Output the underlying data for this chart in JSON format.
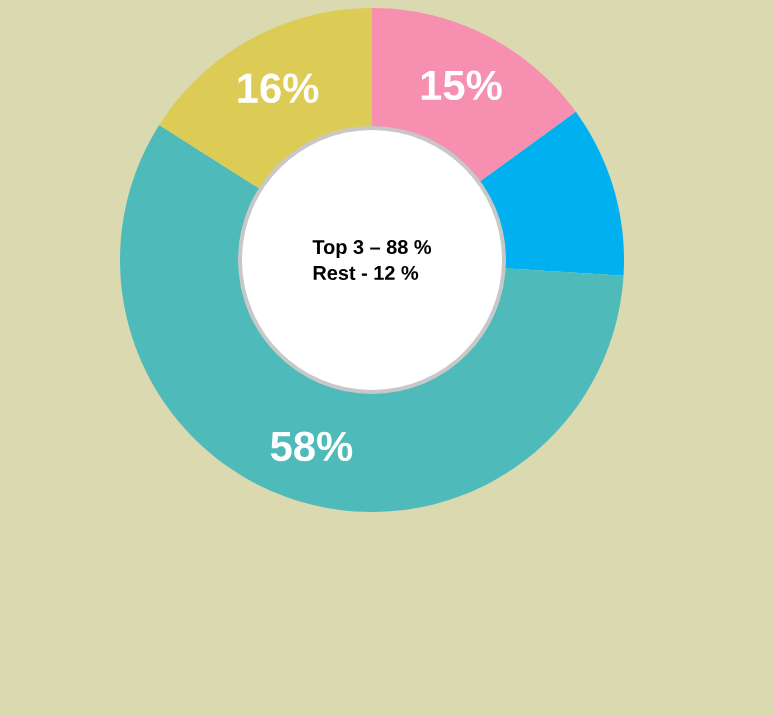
{
  "chart_data": {
    "type": "donut",
    "categories": [
      null,
      null,
      null,
      null
    ],
    "values": [
      15,
      11,
      58,
      16
    ],
    "colors": [
      "#f78fb0",
      "#00b0f0",
      "#4fbaba",
      "#dccc55"
    ],
    "value_labels": [
      "15%",
      null,
      "58%",
      "16%"
    ],
    "annotations": [
      "Top 3 – 88 %",
      "Rest   -  12 %"
    ]
  }
}
